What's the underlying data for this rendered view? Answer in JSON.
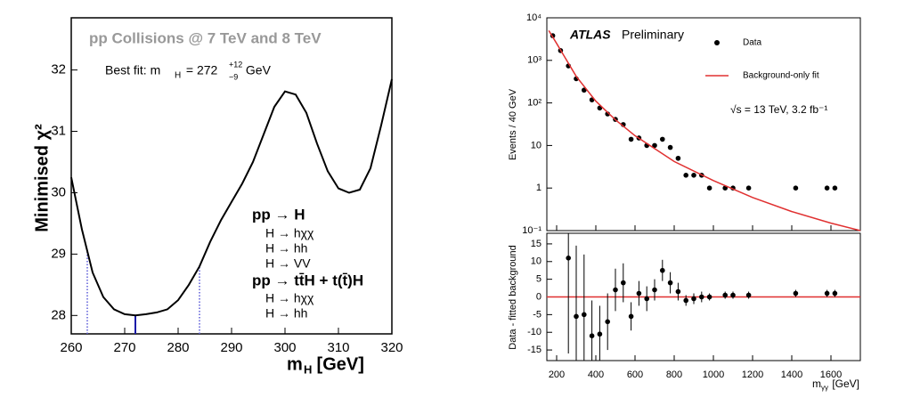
{
  "chart_data": [
    {
      "type": "line",
      "title": "pp Collisions @ 7 TeV and 8 TeV",
      "annotation": [
        "Best fit: m",
        "H",
        " = 272 ",
        "+12",
        "−9",
        " GeV"
      ],
      "ylabel": "Minimised χ²",
      "xlabel": [
        "m",
        "H",
        " [GeV]"
      ],
      "legend_text": [
        "pp → H",
        "H → hχχ",
        "H → hh",
        "H → VV",
        "pp → tt̄H + t(t̄)H",
        "H → hχχ",
        "H → hh"
      ],
      "x": [
        260,
        262,
        264,
        266,
        268,
        270,
        272,
        274,
        276,
        278,
        280,
        282,
        284,
        286,
        288,
        290,
        292,
        294,
        296,
        298,
        300,
        302,
        304,
        306,
        308,
        310,
        312,
        314,
        316,
        318,
        320
      ],
      "series": [
        {
          "color": "#000000",
          "values": [
            30.25,
            29.4,
            28.7,
            28.3,
            28.1,
            28.02,
            28.0,
            28.02,
            28.05,
            28.1,
            28.25,
            28.5,
            28.8,
            29.2,
            29.55,
            29.85,
            30.15,
            30.5,
            30.95,
            31.4,
            31.65,
            31.6,
            31.3,
            30.8,
            30.35,
            30.07,
            30.0,
            30.05,
            30.4,
            31.1,
            31.85
          ]
        }
      ],
      "vlines": [
        {
          "x": 263,
          "color": "#5a5ad8",
          "style": "dotted"
        },
        {
          "x": 272,
          "color": "#1a1aa8",
          "style": "solid"
        },
        {
          "x": 284,
          "color": "#5a5ad8",
          "style": "dotted"
        }
      ],
      "xlim": [
        260,
        320
      ],
      "ylim": [
        27.7,
        32.85
      ],
      "xticks": [
        260,
        270,
        280,
        290,
        300,
        310,
        320
      ],
      "yticks": [
        28,
        29,
        30,
        31,
        32
      ]
    },
    {
      "type": "scatter",
      "scale": "log",
      "annotation": [
        "ATLAS",
        "Preliminary"
      ],
      "energy": "√s = 13 TeV, 3.2 fb⁻¹",
      "ylabel": "Events / 40 GeV",
      "x": [
        180,
        220,
        260,
        300,
        340,
        380,
        420,
        460,
        500,
        540,
        580,
        620,
        660,
        700,
        740,
        780,
        820,
        860,
        900,
        940,
        980,
        1060,
        1100,
        1180,
        1420,
        1580,
        1620
      ],
      "series": [
        {
          "name": "Data",
          "color": "#000000",
          "values": [
            3800,
            1700,
            740,
            370,
            200,
            118,
            76,
            55,
            41,
            31,
            14,
            15,
            10,
            10,
            14,
            9,
            5,
            2,
            2,
            2,
            1,
            1,
            1,
            1,
            1,
            1,
            1
          ]
        },
        {
          "name": "Background-only fit",
          "color": "#e03030",
          "type": "line",
          "x": [
            160,
            200,
            300,
            400,
            500,
            600,
            800,
            1000,
            1200,
            1400,
            1600,
            1750
          ],
          "values": [
            5000,
            2500,
            420,
            110,
            40,
            17,
            4.2,
            1.5,
            0.6,
            0.28,
            0.15,
            0.1
          ]
        }
      ],
      "xlim": [
        150,
        1750
      ],
      "ylim": [
        0.1,
        10000
      ],
      "yticks": [
        {
          "value": 0.1,
          "label": "10⁻¹"
        },
        1,
        10,
        {
          "value": 100,
          "label": "10²"
        },
        {
          "value": 1000,
          "label": "10³"
        },
        {
          "value": 10000,
          "label": "10⁴"
        }
      ]
    },
    {
      "type": "scatter",
      "ylabel": "Data - fitted background",
      "xlabel": [
        "m",
        "γγ",
        " [GeV]"
      ],
      "x": [
        180,
        220,
        260,
        300,
        340,
        380,
        420,
        460,
        500,
        540,
        580,
        620,
        660,
        700,
        740,
        780,
        820,
        860,
        900,
        940,
        980,
        1060,
        1100,
        1180,
        1420,
        1580,
        1620
      ],
      "series": [
        {
          "color": "#000000",
          "values": [
            null,
            null,
            11,
            -5.5,
            -5,
            -11,
            -10.5,
            -7,
            2,
            4,
            -5.5,
            1,
            -0.5,
            2,
            7.5,
            4,
            1.5,
            -1,
            -0.5,
            0,
            0,
            0.5,
            0.5,
            0.5,
            1,
            1,
            1
          ],
          "errors": [
            null,
            null,
            27,
            20,
            17,
            10,
            8,
            8,
            6,
            5.5,
            4,
            3.5,
            3.5,
            3,
            3,
            3,
            2.5,
            1.5,
            1.5,
            1.5,
            1,
            1,
            1,
            1,
            1,
            1,
            1
          ]
        }
      ],
      "reference_line": 0,
      "reference_color": "#e03030",
      "xlim": [
        150,
        1750
      ],
      "ylim": [
        -18,
        18
      ],
      "xticks": [
        200,
        400,
        600,
        800,
        1000,
        1200,
        1400,
        1600
      ],
      "yticks": [
        -15,
        -10,
        -5,
        0,
        5,
        10,
        15
      ]
    }
  ]
}
